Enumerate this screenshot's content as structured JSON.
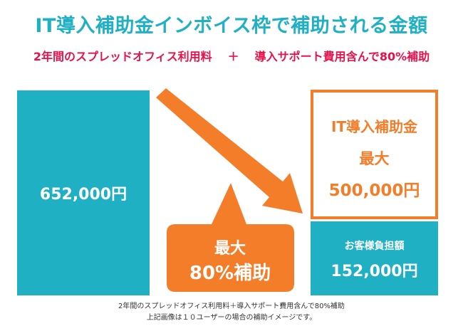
{
  "header": {
    "title": "IT導入補助金インボイス枠で補助される金額",
    "subtitle_left": "2年間のスプレッドオフィス利用料",
    "subtitle_plus": "＋",
    "subtitle_right": "導入サポート費用含んで80%補助"
  },
  "left_block": {
    "amount": "652,000円"
  },
  "subsidy_block": {
    "label": "IT導入補助金",
    "max_label": "最大",
    "amount": "500,000円"
  },
  "burden_block": {
    "label": "お客様負担額",
    "amount": "152,000円"
  },
  "callout": {
    "line1": "最大",
    "line2": "80%補助"
  },
  "footer": {
    "note1": "2年間のスプレッドオフィス利用料＋導入サポート費用含んで80%補助",
    "note2": "上記画像は１０ユーザーの場合の補助イメージです。"
  },
  "colors": {
    "teal": "#1fb0c4",
    "orange": "#f47d2a",
    "red": "#e8124a"
  }
}
